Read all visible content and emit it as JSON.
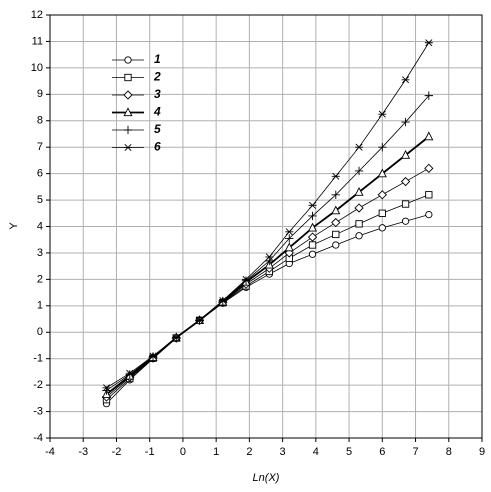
{
  "chart_data": {
    "type": "line",
    "xlabel": "Ln(X)",
    "ylabel": "Y",
    "x": [
      -2.3,
      -1.6,
      -0.9,
      -0.2,
      0.5,
      1.2,
      1.9,
      2.6,
      3.2,
      3.9,
      4.6,
      5.3,
      6.0,
      6.7,
      7.4
    ],
    "series": [
      {
        "name": "1",
        "color": "#000000",
        "marker": "circle",
        "line_width": 0.8,
        "values": [
          -2.7,
          -1.8,
          -1.0,
          -0.22,
          0.45,
          1.1,
          1.7,
          2.2,
          2.6,
          2.95,
          3.3,
          3.65,
          3.95,
          4.2,
          4.45
        ]
      },
      {
        "name": "2",
        "color": "#000000",
        "marker": "square",
        "line_width": 0.8,
        "values": [
          -2.55,
          -1.75,
          -0.98,
          -0.22,
          0.45,
          1.12,
          1.75,
          2.3,
          2.8,
          3.3,
          3.7,
          4.1,
          4.5,
          4.85,
          5.2
        ]
      },
      {
        "name": "3",
        "color": "#000000",
        "marker": "diamond",
        "line_width": 0.8,
        "values": [
          -2.45,
          -1.7,
          -0.97,
          -0.22,
          0.45,
          1.13,
          1.82,
          2.42,
          3.0,
          3.6,
          4.15,
          4.7,
          5.2,
          5.7,
          6.2
        ]
      },
      {
        "name": "4",
        "color": "#000000",
        "marker": "triangle",
        "line_width": 1.8,
        "values": [
          -2.35,
          -1.65,
          -0.95,
          -0.2,
          0.45,
          1.15,
          1.9,
          2.55,
          3.2,
          3.95,
          4.6,
          5.3,
          6.0,
          6.7,
          7.4
        ]
      },
      {
        "name": "5",
        "color": "#000000",
        "marker": "plus",
        "line_width": 0.8,
        "values": [
          -2.2,
          -1.6,
          -0.92,
          -0.2,
          0.45,
          1.18,
          1.95,
          2.7,
          3.55,
          4.4,
          5.2,
          6.1,
          7.0,
          7.95,
          8.95
        ]
      },
      {
        "name": "6",
        "color": "#000000",
        "marker": "asterisk",
        "line_width": 0.8,
        "values": [
          -2.1,
          -1.55,
          -0.9,
          -0.2,
          0.45,
          1.2,
          2.0,
          2.85,
          3.8,
          4.8,
          5.9,
          7.0,
          8.25,
          9.55,
          10.95
        ]
      }
    ],
    "xlim": [
      -4,
      9
    ],
    "xticks": [
      -4,
      -3,
      -2,
      -1,
      0,
      1,
      2,
      3,
      4,
      5,
      6,
      7,
      8,
      9
    ],
    "ylim": [
      -4,
      12
    ],
    "yticks": [
      -4,
      -3,
      -2,
      -1,
      0,
      1,
      2,
      3,
      4,
      5,
      6,
      7,
      8,
      9,
      10,
      11,
      12
    ],
    "grid": true,
    "grid_color": "#b0b0b0",
    "legend_position": "upper left"
  }
}
